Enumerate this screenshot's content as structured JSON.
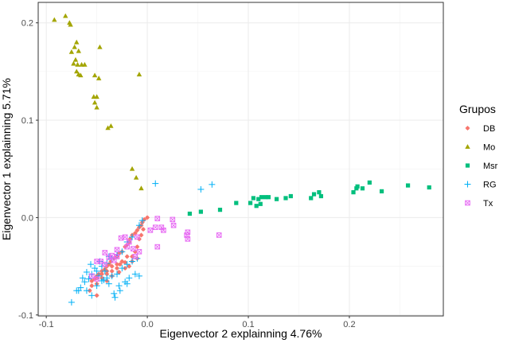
{
  "chart_data": {
    "type": "scatter",
    "xlabel": "Eigenvector 2 explainning 4.76%",
    "ylabel": "Eigenvector 1 explainning 5.71%",
    "xlim": [
      -0.108,
      0.293
    ],
    "ylim": [
      -0.101,
      0.221
    ],
    "x_ticks": [
      -0.1,
      0.0,
      0.1,
      0.2
    ],
    "x_tick_labels": [
      "-0.1",
      "0.0",
      "0.1",
      "0.2"
    ],
    "y_ticks": [
      -0.1,
      0.0,
      0.1,
      0.2
    ],
    "y_tick_labels": [
      "-0.1",
      "0.0",
      "0.1",
      "0.2"
    ],
    "grid": true,
    "legend": {
      "title": "Grupos",
      "position": "right"
    },
    "series": [
      {
        "name": "DB",
        "color": "#F8766D",
        "marker": "asterisk",
        "points": [
          [
            -0.0,
            0.0
          ],
          [
            -0.003,
            -0.002
          ],
          [
            -0.005,
            -0.005
          ],
          [
            -0.006,
            -0.008
          ],
          [
            -0.008,
            -0.01
          ],
          [
            -0.01,
            -0.013
          ],
          [
            -0.012,
            -0.016
          ],
          [
            -0.015,
            -0.018
          ],
          [
            -0.017,
            -0.022
          ],
          [
            -0.018,
            -0.025
          ],
          [
            -0.02,
            -0.028
          ],
          [
            -0.022,
            -0.03
          ],
          [
            -0.025,
            -0.035
          ],
          [
            -0.028,
            -0.037
          ],
          [
            -0.03,
            -0.04
          ],
          [
            -0.033,
            -0.042
          ],
          [
            -0.036,
            -0.045
          ],
          [
            -0.038,
            -0.048
          ],
          [
            -0.04,
            -0.05
          ],
          [
            -0.042,
            -0.053
          ],
          [
            -0.045,
            -0.055
          ],
          [
            -0.048,
            -0.058
          ],
          [
            -0.05,
            -0.06
          ],
          [
            -0.052,
            -0.063
          ],
          [
            -0.055,
            -0.065
          ],
          [
            -0.05,
            -0.068
          ],
          [
            -0.045,
            -0.062
          ],
          [
            -0.04,
            -0.058
          ],
          [
            -0.035,
            -0.055
          ],
          [
            -0.03,
            -0.052
          ],
          [
            -0.027,
            -0.048
          ],
          [
            -0.022,
            -0.046
          ],
          [
            -0.018,
            -0.05
          ],
          [
            -0.015,
            -0.04
          ],
          [
            -0.012,
            -0.035
          ],
          [
            -0.01,
            -0.03
          ],
          [
            -0.02,
            -0.04
          ],
          [
            -0.025,
            -0.045
          ],
          [
            -0.03,
            -0.048
          ],
          [
            -0.035,
            -0.05
          ],
          [
            -0.04,
            -0.055
          ],
          [
            -0.045,
            -0.058
          ],
          [
            -0.05,
            -0.062
          ],
          [
            -0.055,
            -0.07
          ],
          [
            -0.057,
            -0.075
          ],
          [
            -0.05,
            -0.08
          ],
          [
            -0.04,
            -0.065
          ],
          [
            -0.035,
            -0.06
          ],
          [
            -0.028,
            -0.056
          ],
          [
            -0.022,
            -0.052
          ],
          [
            -0.015,
            -0.045
          ],
          [
            -0.008,
            -0.022
          ],
          [
            -0.006,
            -0.018
          ],
          [
            -0.004,
            -0.012
          ],
          [
            -0.01,
            -0.042
          ]
        ]
      },
      {
        "name": "Mo",
        "color": "#A3A500",
        "marker": "triangle",
        "points": [
          [
            -0.092,
            0.203
          ],
          [
            -0.081,
            0.207
          ],
          [
            -0.077,
            0.2
          ],
          [
            -0.076,
            0.198
          ],
          [
            -0.07,
            0.18
          ],
          [
            -0.072,
            0.175
          ],
          [
            -0.068,
            0.171
          ],
          [
            -0.075,
            0.17
          ],
          [
            -0.071,
            0.162
          ],
          [
            -0.069,
            0.157
          ],
          [
            -0.065,
            0.157
          ],
          [
            -0.073,
            0.158
          ],
          [
            -0.062,
            0.157
          ],
          [
            -0.07,
            0.15
          ],
          [
            -0.068,
            0.147
          ],
          [
            -0.066,
            0.146
          ],
          [
            -0.052,
            0.146
          ],
          [
            -0.048,
            0.143
          ],
          [
            -0.047,
            0.175
          ],
          [
            -0.008,
            0.147
          ],
          [
            -0.053,
            0.124
          ],
          [
            -0.05,
            0.124
          ],
          [
            -0.052,
            0.118
          ],
          [
            -0.05,
            0.113
          ],
          [
            -0.036,
            0.094
          ],
          [
            -0.039,
            0.092
          ],
          [
            -0.015,
            0.05
          ],
          [
            -0.011,
            0.041
          ],
          [
            -0.006,
            0.03
          ]
        ]
      },
      {
        "name": "Msr",
        "color": "#00BF7D",
        "marker": "square",
        "points": [
          [
            0.042,
            0.004
          ],
          [
            0.053,
            0.006
          ],
          [
            0.072,
            0.008
          ],
          [
            0.088,
            0.015
          ],
          [
            0.102,
            0.015
          ],
          [
            0.105,
            0.02
          ],
          [
            0.108,
            0.012
          ],
          [
            0.11,
            0.019
          ],
          [
            0.112,
            0.014
          ],
          [
            0.113,
            0.021
          ],
          [
            0.117,
            0.021
          ],
          [
            0.12,
            0.021
          ],
          [
            0.128,
            0.019
          ],
          [
            0.137,
            0.02
          ],
          [
            0.142,
            0.022
          ],
          [
            0.162,
            0.02
          ],
          [
            0.165,
            0.024
          ],
          [
            0.17,
            0.026
          ],
          [
            0.172,
            0.022
          ],
          [
            0.204,
            0.026
          ],
          [
            0.207,
            0.03
          ],
          [
            0.208,
            0.032
          ],
          [
            0.213,
            0.03
          ],
          [
            0.22,
            0.036
          ],
          [
            0.232,
            0.027
          ],
          [
            0.258,
            0.033
          ],
          [
            0.279,
            0.031
          ]
        ]
      },
      {
        "name": "RG",
        "color": "#00B0F6",
        "marker": "plus",
        "points": [
          [
            0.008,
            0.035
          ],
          [
            0.053,
            0.029
          ],
          [
            0.064,
            0.034
          ],
          [
            -0.005,
            -0.003
          ],
          [
            -0.008,
            -0.008
          ],
          [
            -0.015,
            -0.02
          ],
          [
            -0.02,
            -0.025
          ],
          [
            -0.025,
            -0.035
          ],
          [
            -0.03,
            -0.038
          ],
          [
            -0.035,
            -0.042
          ],
          [
            -0.04,
            -0.047
          ],
          [
            -0.045,
            -0.05
          ],
          [
            -0.05,
            -0.055
          ],
          [
            -0.055,
            -0.058
          ],
          [
            -0.058,
            -0.063
          ],
          [
            -0.062,
            -0.066
          ],
          [
            -0.066,
            -0.072
          ],
          [
            -0.06,
            -0.075
          ],
          [
            -0.055,
            -0.08
          ],
          [
            -0.05,
            -0.07
          ],
          [
            -0.045,
            -0.065
          ],
          [
            -0.04,
            -0.062
          ],
          [
            -0.035,
            -0.06
          ],
          [
            -0.03,
            -0.058
          ],
          [
            -0.025,
            -0.052
          ],
          [
            -0.02,
            -0.048
          ],
          [
            -0.015,
            -0.045
          ],
          [
            -0.01,
            -0.042
          ],
          [
            -0.008,
            -0.06
          ],
          [
            -0.012,
            -0.058
          ],
          [
            -0.018,
            -0.062
          ],
          [
            -0.022,
            -0.066
          ],
          [
            -0.028,
            -0.07
          ],
          [
            -0.033,
            -0.078
          ],
          [
            -0.038,
            -0.068
          ],
          [
            -0.043,
            -0.064
          ],
          [
            -0.048,
            -0.06
          ],
          [
            -0.052,
            -0.052
          ],
          [
            -0.056,
            -0.048
          ],
          [
            -0.06,
            -0.056
          ],
          [
            -0.064,
            -0.062
          ],
          [
            -0.068,
            -0.075
          ],
          [
            -0.07,
            -0.075
          ],
          [
            -0.075,
            -0.087
          ],
          [
            -0.032,
            -0.082
          ],
          [
            -0.027,
            -0.075
          ],
          [
            -0.02,
            -0.068
          ],
          [
            -0.042,
            -0.055
          ],
          [
            -0.047,
            -0.045
          ],
          [
            -0.038,
            -0.04
          ]
        ]
      },
      {
        "name": "Tx",
        "color": "#E76BF3",
        "marker": "square-cross",
        "points": [
          [
            0.01,
            -0.001
          ],
          [
            0.025,
            -0.002
          ],
          [
            0.026,
            -0.008
          ],
          [
            0.014,
            -0.01
          ],
          [
            0.008,
            -0.01
          ],
          [
            0.003,
            -0.013
          ],
          [
            0.016,
            -0.013
          ],
          [
            0.04,
            -0.015
          ],
          [
            0.039,
            -0.018
          ],
          [
            0.04,
            -0.022
          ],
          [
            0.071,
            -0.018
          ],
          [
            0.01,
            -0.03
          ],
          [
            -0.01,
            -0.02
          ],
          [
            -0.022,
            -0.02
          ],
          [
            -0.026,
            -0.021
          ],
          [
            -0.018,
            -0.025
          ],
          [
            -0.02,
            -0.03
          ],
          [
            -0.014,
            -0.032
          ],
          [
            -0.012,
            -0.04
          ],
          [
            -0.008,
            -0.035
          ],
          [
            -0.03,
            -0.033
          ],
          [
            -0.03,
            -0.04
          ],
          [
            -0.035,
            -0.039
          ],
          [
            -0.038,
            -0.041
          ],
          [
            -0.042,
            -0.036
          ],
          [
            -0.046,
            -0.045
          ],
          [
            -0.05,
            -0.045
          ],
          [
            -0.055,
            -0.06
          ],
          [
            -0.05,
            -0.063
          ],
          [
            -0.033,
            -0.044
          ],
          [
            -0.042,
            -0.048
          ]
        ]
      }
    ]
  }
}
